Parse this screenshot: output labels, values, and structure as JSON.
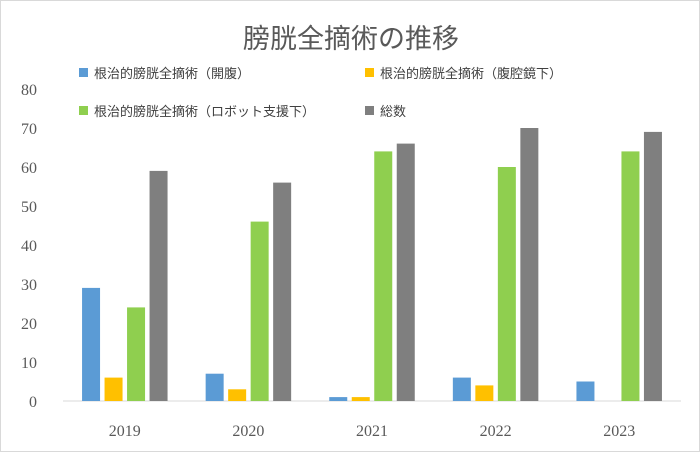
{
  "chart_data": {
    "type": "bar",
    "title": "膀胱全摘術の推移",
    "xlabel": "",
    "ylabel": "",
    "categories": [
      "2019",
      "2020",
      "2021",
      "2022",
      "2023"
    ],
    "ylim": [
      0,
      80
    ],
    "yticks": [
      0,
      10,
      20,
      30,
      40,
      50,
      60,
      70,
      80
    ],
    "grid": false,
    "legend_position": "top",
    "series": [
      {
        "name": "根治的膀胱全摘術（開腹）",
        "color": "#5b9bd5",
        "values": [
          29,
          7,
          1,
          6,
          5
        ]
      },
      {
        "name": "根治的膀胱全摘術（腹腔鏡下）",
        "color": "#ffc000",
        "values": [
          6,
          3,
          1,
          4,
          0
        ]
      },
      {
        "name": "根治的膀胱全摘術（ロボット支援下）",
        "color": "#8fcf4f",
        "values": [
          24,
          46,
          64,
          60,
          64
        ]
      },
      {
        "name": "総数",
        "color": "#7f7f7f",
        "values": [
          59,
          56,
          66,
          70,
          69
        ]
      }
    ]
  }
}
